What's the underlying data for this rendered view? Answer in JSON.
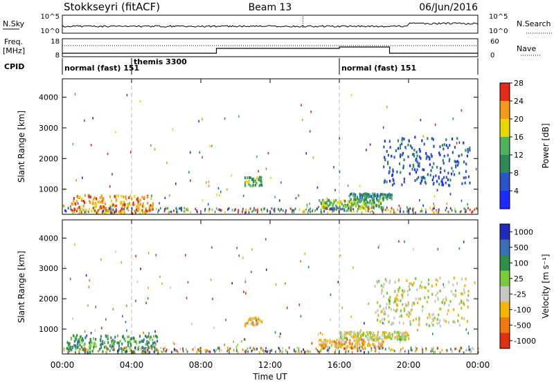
{
  "header": {
    "title": "Stokkseyri (fitACF)",
    "beam": "Beam 13",
    "date": "06/Jun/2016"
  },
  "noise_panel": {
    "left_label": "N.Sky",
    "right_label": "N.Search",
    "ticks_left": [
      "10^5",
      "10^0"
    ],
    "ticks_right": [
      "10^5",
      "10^0"
    ]
  },
  "freq_panel": {
    "left_label_1": "Freq.",
    "left_label_2": "[MHz]",
    "ticks_left": [
      "18",
      "8"
    ],
    "ticks_right": [
      "60",
      "0"
    ],
    "right_label": "Nave"
  },
  "cpid": {
    "label": "CPID",
    "segments": [
      {
        "start_h": 0.0,
        "end_h": 4.0,
        "label": "normal (fast) 151"
      },
      {
        "start_h": 4.0,
        "end_h": 16.0,
        "label": "themis 3300"
      },
      {
        "start_h": 16.0,
        "end_h": 24.0,
        "label": "normal (fast) 151"
      }
    ]
  },
  "time_axis": {
    "title": "Time UT",
    "ticks": [
      "00:00",
      "04:00",
      "08:00",
      "12:00",
      "16:00",
      "20:00",
      "00:00"
    ],
    "start_h": 0,
    "end_h": 24
  },
  "chart_data": [
    {
      "type": "heatmap",
      "name": "Power",
      "ylabel": "Slant Range [km]",
      "yticks": [
        1000,
        2000,
        3000,
        4000
      ],
      "ylim": [
        180,
        4600
      ],
      "colorbar": {
        "label": "Power [dB]",
        "ticks": [
          "4",
          "8",
          "12",
          "16",
          "20",
          "24",
          "28"
        ],
        "colors": [
          "#1b2bff",
          "#2a55c8",
          "#2e8a5a",
          "#4cb35a",
          "#e8d800",
          "#f59a1a",
          "#e62a1a"
        ]
      },
      "regions": [
        {
          "x": [
            0.5,
            5.2
          ],
          "y": [
            200,
            800
          ],
          "level": 5
        },
        {
          "x": [
            14.8,
            18.5
          ],
          "y": [
            350,
            650
          ],
          "level": 3
        },
        {
          "x": [
            16.5,
            19.0
          ],
          "y": [
            650,
            850
          ],
          "level": 2
        },
        {
          "x": [
            18.5,
            23.5
          ],
          "y": [
            1100,
            2700
          ],
          "level": 1
        },
        {
          "x": [
            10.5,
            11.5
          ],
          "y": [
            1100,
            1400
          ],
          "level": 3
        }
      ]
    },
    {
      "type": "heatmap",
      "name": "Velocity",
      "ylabel": "Slant Range [km]",
      "yticks": [
        1000,
        2000,
        3000,
        4000
      ],
      "ylim": [
        180,
        4600
      ],
      "colorbar": {
        "label": "Velocity [m s⁻¹]",
        "ticks": [
          "1000",
          "500",
          "100",
          "25",
          "-25",
          "-100",
          "-500",
          "-1000"
        ],
        "colors": [
          "#1f2cbd",
          "#3a6fb5",
          "#2e8f4a",
          "#7acb3a",
          "#c8c8c0",
          "#f5b400",
          "#f07a10",
          "#e03010"
        ]
      },
      "regions": [
        {
          "x": [
            0.2,
            5.5
          ],
          "y": [
            200,
            800
          ],
          "level": 2
        },
        {
          "x": [
            14.8,
            18.5
          ],
          "y": [
            350,
            650
          ],
          "level": 5
        },
        {
          "x": [
            16.0,
            20.0
          ],
          "y": [
            650,
            900
          ],
          "level": 4
        },
        {
          "x": [
            18.0,
            23.5
          ],
          "y": [
            1100,
            2700
          ],
          "level": 4
        },
        {
          "x": [
            10.5,
            11.5
          ],
          "y": [
            1100,
            1400
          ],
          "level": 5
        }
      ]
    }
  ]
}
